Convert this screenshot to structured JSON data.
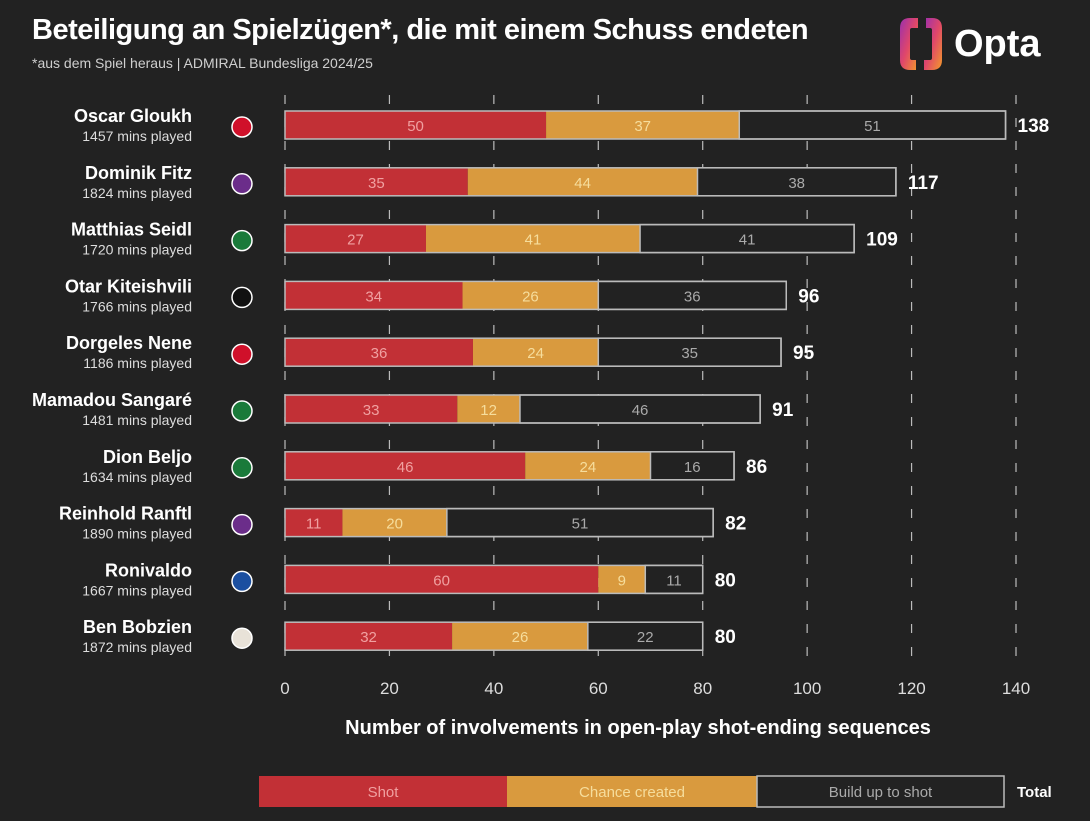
{
  "header": {
    "title": "Beteiligung an Spielzügen*, die mit einem Schuss endeten",
    "subtitle": "*aus dem Spiel heraus | ADMIRAL Bundesliga 2024/25",
    "brand": "Opta"
  },
  "colors": {
    "shot": "#c23036",
    "chance": "#d99a3e",
    "buildup": "#222222",
    "background": "#222222"
  },
  "chart_data": {
    "type": "bar",
    "stacked": true,
    "orientation": "horizontal",
    "title": "Beteiligung an Spielzügen*, die mit einem Schuss endeten",
    "xlabel": "Number of involvements in open-play shot-ending sequences",
    "xlim": [
      0,
      140
    ],
    "xticks": [
      0,
      20,
      40,
      60,
      80,
      100,
      120,
      140
    ],
    "grid": "vertical dashed",
    "legend_placement": "bottom",
    "legend_total_label": "Total",
    "categories": [
      "Oscar Gloukh",
      "Dominik Fitz",
      "Matthias Seidl",
      "Otar Kiteishvili",
      "Dorgeles Nene",
      "Mamadou Sangaré",
      "Dion Beljo",
      "Reinhold Ranftl",
      "Ronivaldo",
      "Ben Bobzien"
    ],
    "minutes": [
      "1457 mins played",
      "1824 mins played",
      "1720 mins played",
      "1766 mins played",
      "1186 mins played",
      "1481 mins played",
      "1634 mins played",
      "1890 mins played",
      "1667 mins played",
      "1872 mins played"
    ],
    "club_icons": [
      "salzburg",
      "austria-wien",
      "rapid-wien",
      "sturm-graz",
      "salzburg",
      "rapid-wien",
      "rapid-wien",
      "austria-wien",
      "blau-weiss-linz",
      "wolfsberg"
    ],
    "series": [
      {
        "name": "Shot",
        "values": [
          50,
          35,
          27,
          34,
          36,
          33,
          46,
          11,
          60,
          32
        ]
      },
      {
        "name": "Chance created",
        "values": [
          37,
          44,
          41,
          26,
          24,
          12,
          24,
          20,
          9,
          26
        ]
      },
      {
        "name": "Build up to shot",
        "values": [
          51,
          38,
          41,
          36,
          35,
          46,
          16,
          51,
          11,
          22
        ]
      }
    ],
    "totals": [
      138,
      117,
      109,
      96,
      95,
      91,
      86,
      82,
      80,
      80
    ]
  }
}
